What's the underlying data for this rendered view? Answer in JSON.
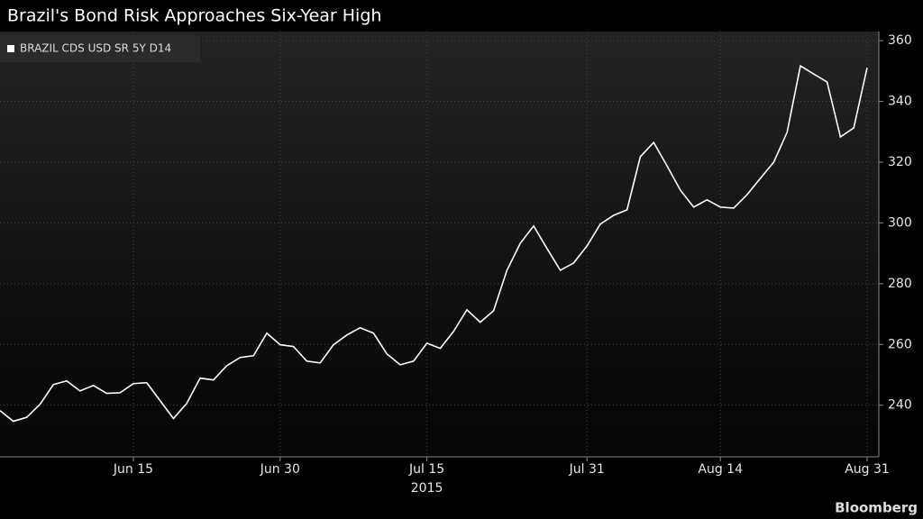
{
  "chart_data": {
    "type": "line",
    "title": "Brazil's Bond Risk Approaches Six-Year High",
    "source": "Bloomberg",
    "xlabel": "2015",
    "categories": [
      null,
      null,
      null,
      null,
      null,
      null,
      null,
      null,
      null,
      null,
      "Jun 15",
      null,
      null,
      null,
      null,
      null,
      null,
      null,
      null,
      null,
      null,
      "Jun 30",
      null,
      null,
      null,
      null,
      null,
      null,
      null,
      null,
      null,
      null,
      "Jul 15",
      null,
      null,
      null,
      null,
      null,
      null,
      null,
      null,
      null,
      null,
      null,
      "Jul 31",
      null,
      null,
      null,
      null,
      null,
      null,
      null,
      null,
      null,
      "Aug 14",
      null,
      null,
      null,
      null,
      null,
      null,
      null,
      null,
      null,
      null,
      "Aug 31"
    ],
    "series": [
      {
        "name": "BRAZIL CDS USD SR 5Y D14",
        "color": "#ffffff",
        "values": [
          238.2,
          234.7,
          236,
          240.3,
          246.8,
          248,
          244.7,
          246.5,
          243.9,
          244.1,
          247.1,
          247.4,
          241.5,
          235.6,
          240.6,
          248.9,
          248.3,
          253,
          255.7,
          256.3,
          263.7,
          259.9,
          259.3,
          254.5,
          253.9,
          259.9,
          263.1,
          265.5,
          263.7,
          256.9,
          253.3,
          254.5,
          260.4,
          258.7,
          264.3,
          271.4,
          267.3,
          271.1,
          284.4,
          293.3,
          299,
          291.6,
          284.4,
          286.8,
          292.4,
          299.6,
          302.5,
          304.3,
          321.8,
          326.5,
          318.8,
          310.8,
          305.2,
          307.6,
          305.2,
          304.9,
          309.3,
          314.7,
          320,
          329.8,
          351.7,
          349,
          346.4,
          328.3,
          331.3,
          351.1
        ]
      }
    ],
    "ylim": [
      223,
      363
    ],
    "yticks": [
      240,
      260,
      280,
      300,
      320,
      340,
      360
    ],
    "grid": true,
    "legend": "upper left"
  }
}
